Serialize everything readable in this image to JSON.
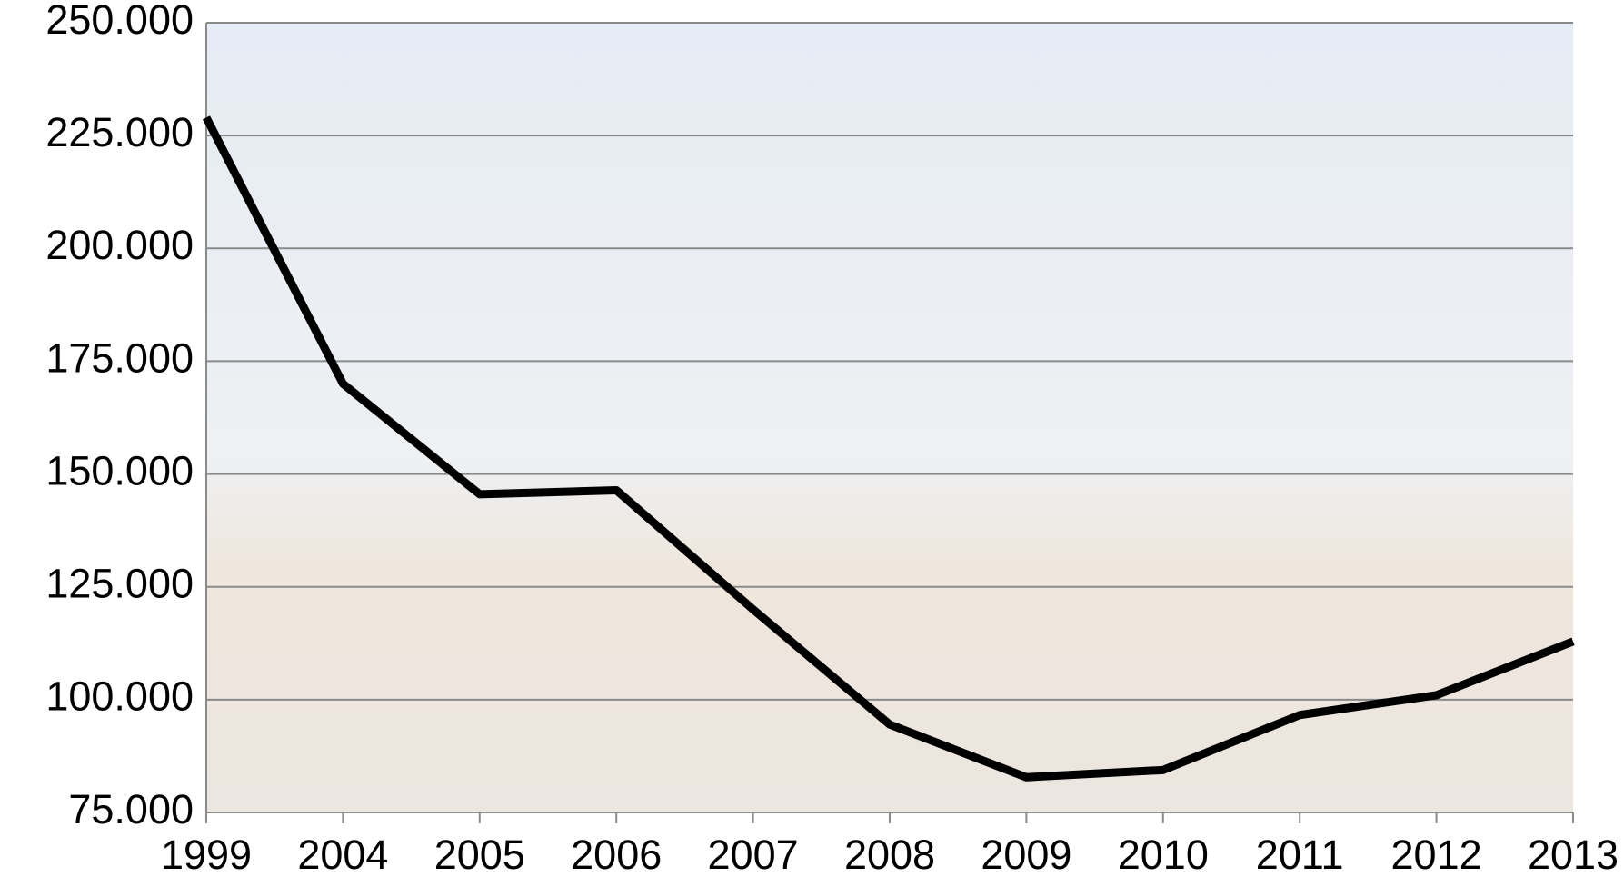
{
  "chart_data": {
    "type": "line",
    "categories": [
      "1999",
      "2004",
      "2005",
      "2006",
      "2007",
      "2008",
      "2009",
      "2010",
      "2011",
      "2012",
      "2013"
    ],
    "series": [
      {
        "color": "#000000",
        "values": [
          229000,
          170000,
          145500,
          146400,
          120000,
          94500,
          82800,
          84400,
          96600,
          101000,
          112900
        ]
      }
    ],
    "ylim": [
      75000,
      250000
    ],
    "yticks": [
      {
        "value": 75000,
        "label": "75.000"
      },
      {
        "value": 100000,
        "label": "100.000"
      },
      {
        "value": 125000,
        "label": "125.000"
      },
      {
        "value": 150000,
        "label": "150.000"
      },
      {
        "value": 175000,
        "label": "175.000"
      },
      {
        "value": 200000,
        "label": "200.000"
      },
      {
        "value": 225000,
        "label": "225.000"
      },
      {
        "value": 250000,
        "label": "250.000"
      }
    ],
    "grid": true
  }
}
